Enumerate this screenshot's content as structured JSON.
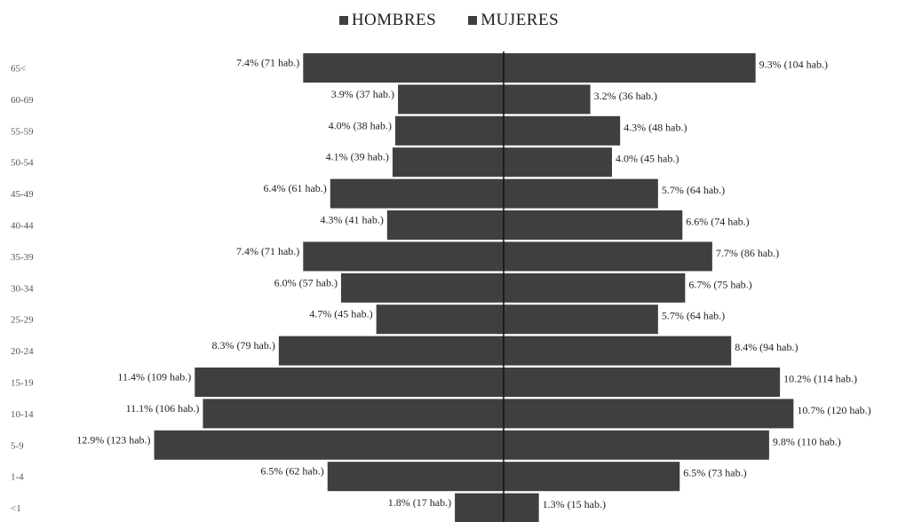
{
  "chart_data": {
    "type": "bar",
    "subtype": "population-pyramid",
    "legend": [
      "HOMBRES",
      "MUJERES"
    ],
    "legend_position": "top-center",
    "grid": false,
    "categories": [
      "65<",
      "60-69",
      "55-59",
      "50-54",
      "45-49",
      "40-44",
      "35-39",
      "30-34",
      "25-29",
      "20-24",
      "15-19",
      "10-14",
      "5-9",
      "1-4",
      "<1"
    ],
    "series": [
      {
        "name": "HOMBRES",
        "values": [
          7.4,
          3.9,
          4.0,
          4.1,
          6.4,
          4.3,
          7.4,
          6.0,
          4.7,
          8.3,
          11.4,
          11.1,
          12.9,
          6.5,
          1.8
        ],
        "counts": [
          71,
          37,
          38,
          39,
          61,
          41,
          71,
          57,
          45,
          79,
          109,
          106,
          123,
          62,
          17
        ],
        "labels": [
          "7.4% (71 hab.)",
          "3.9% (37 hab.)",
          "4.0% (38 hab.)",
          "4.1% (39 hab.)",
          "6.4% (61 hab.)",
          "4.3% (41 hab.)",
          "7.4% (71 hab.)",
          "6.0% (57 hab.)",
          "4.7% (45 hab.)",
          "8.3% (79 hab.)",
          "11.4% (109 hab.)",
          "11.1% (106 hab.)",
          "12.9% (123 hab.)",
          "6.5% (62 hab.)",
          "1.8% (17 hab.)"
        ]
      },
      {
        "name": "MUJERES",
        "values": [
          9.3,
          3.2,
          4.3,
          4.0,
          5.7,
          6.6,
          7.7,
          6.7,
          5.7,
          8.4,
          10.2,
          10.7,
          9.8,
          6.5,
          1.3
        ],
        "counts": [
          104,
          36,
          48,
          45,
          64,
          74,
          86,
          75,
          64,
          94,
          114,
          120,
          110,
          73,
          15
        ],
        "labels": [
          "9.3% (104 hab.)",
          "3.2% (36 hab.)",
          "4.3% (48 hab.)",
          "4.0% (45 hab.)",
          "5.7% (64 hab.)",
          "6.6% (74 hab.)",
          "7.7% (86 hab.)",
          "6.7% (75 hab.)",
          "5.7% (64 hab.)",
          "8.4% (94 hab.)",
          "10.2% (114 hab.)",
          "10.7% (120 hab.)",
          "9.8% (110 hab.)",
          "6.5% (73 hab.)",
          "1.3% (15 hab.)"
        ]
      }
    ],
    "colors": {
      "bar": "#3f3f3f",
      "axis": "#111111",
      "text": "#222222"
    }
  }
}
